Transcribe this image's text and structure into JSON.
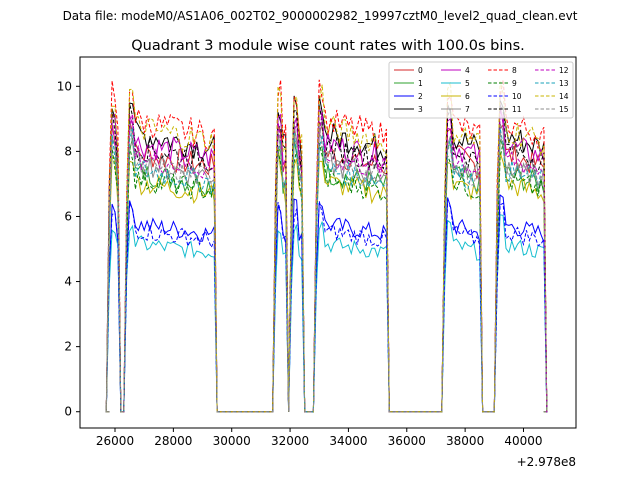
{
  "chart_data": {
    "type": "line",
    "suptitle": "Data file: modeM0/AS1A06_002T02_9000002982_19997cztM0_level2_quad_clean.evt",
    "title": "Quadrant 3 module wise count rates with 100.0s bins.",
    "xlabel": "",
    "ylabel": "",
    "offset_text": "+2.978e8",
    "xlim": [
      24800,
      41800
    ],
    "ylim": [
      -0.5,
      10.9
    ],
    "x_ticks": [
      26000,
      28000,
      30000,
      32000,
      34000,
      36000,
      38000,
      40000
    ],
    "x_tick_labels": [
      "26000",
      "28000",
      "30000",
      "32000",
      "34000",
      "36000",
      "38000",
      "40000"
    ],
    "y_ticks": [
      0,
      2,
      4,
      6,
      8,
      10
    ],
    "y_tick_labels": [
      "0",
      "2",
      "4",
      "6",
      "8",
      "10"
    ],
    "legend_position": "top-right",
    "segments": [
      {
        "start": 25800,
        "end": 26100,
        "kind": "on"
      },
      {
        "start": 26400,
        "end": 29400,
        "kind": "on"
      },
      {
        "start": 31500,
        "end": 31850,
        "kind": "on"
      },
      {
        "start": 32050,
        "end": 32400,
        "kind": "on"
      },
      {
        "start": 32900,
        "end": 35300,
        "kind": "on"
      },
      {
        "start": 37300,
        "end": 38500,
        "kind": "on"
      },
      {
        "start": 39100,
        "end": 40700,
        "kind": "on"
      }
    ],
    "series": [
      {
        "name": "0",
        "color": "#d62728",
        "dash": "solid",
        "level": 8.0
      },
      {
        "name": "1",
        "color": "#2ca02c",
        "dash": "solid",
        "level": 7.4
      },
      {
        "name": "2",
        "color": "#0000ff",
        "dash": "solid",
        "level": 5.8
      },
      {
        "name": "3",
        "color": "#000000",
        "dash": "solid",
        "level": 8.6
      },
      {
        "name": "4",
        "color": "#bf00bf",
        "dash": "solid",
        "level": 8.3
      },
      {
        "name": "5",
        "color": "#17becf",
        "dash": "solid",
        "level": 5.2
      },
      {
        "name": "6",
        "color": "#c8b400",
        "dash": "solid",
        "level": 7.1
      },
      {
        "name": "7",
        "color": "#8c8c8c",
        "dash": "solid",
        "level": 7.7
      },
      {
        "name": "8",
        "color": "#ff0000",
        "dash": "dashed",
        "level": 9.0
      },
      {
        "name": "9",
        "color": "#007f00",
        "dash": "dashed",
        "level": 7.2
      },
      {
        "name": "10",
        "color": "#0000ff",
        "dash": "dashed",
        "level": 5.6
      },
      {
        "name": "11",
        "color": "#000000",
        "dash": "dashed",
        "level": 8.2
      },
      {
        "name": "12",
        "color": "#bf00bf",
        "dash": "dashed",
        "level": 7.9
      },
      {
        "name": "13",
        "color": "#17a2b8",
        "dash": "dashed",
        "level": 7.5
      },
      {
        "name": "14",
        "color": "#c8b400",
        "dash": "dashed",
        "level": 8.8
      },
      {
        "name": "15",
        "color": "#8c8c8c",
        "dash": "dashed",
        "level": 7.6
      }
    ]
  }
}
